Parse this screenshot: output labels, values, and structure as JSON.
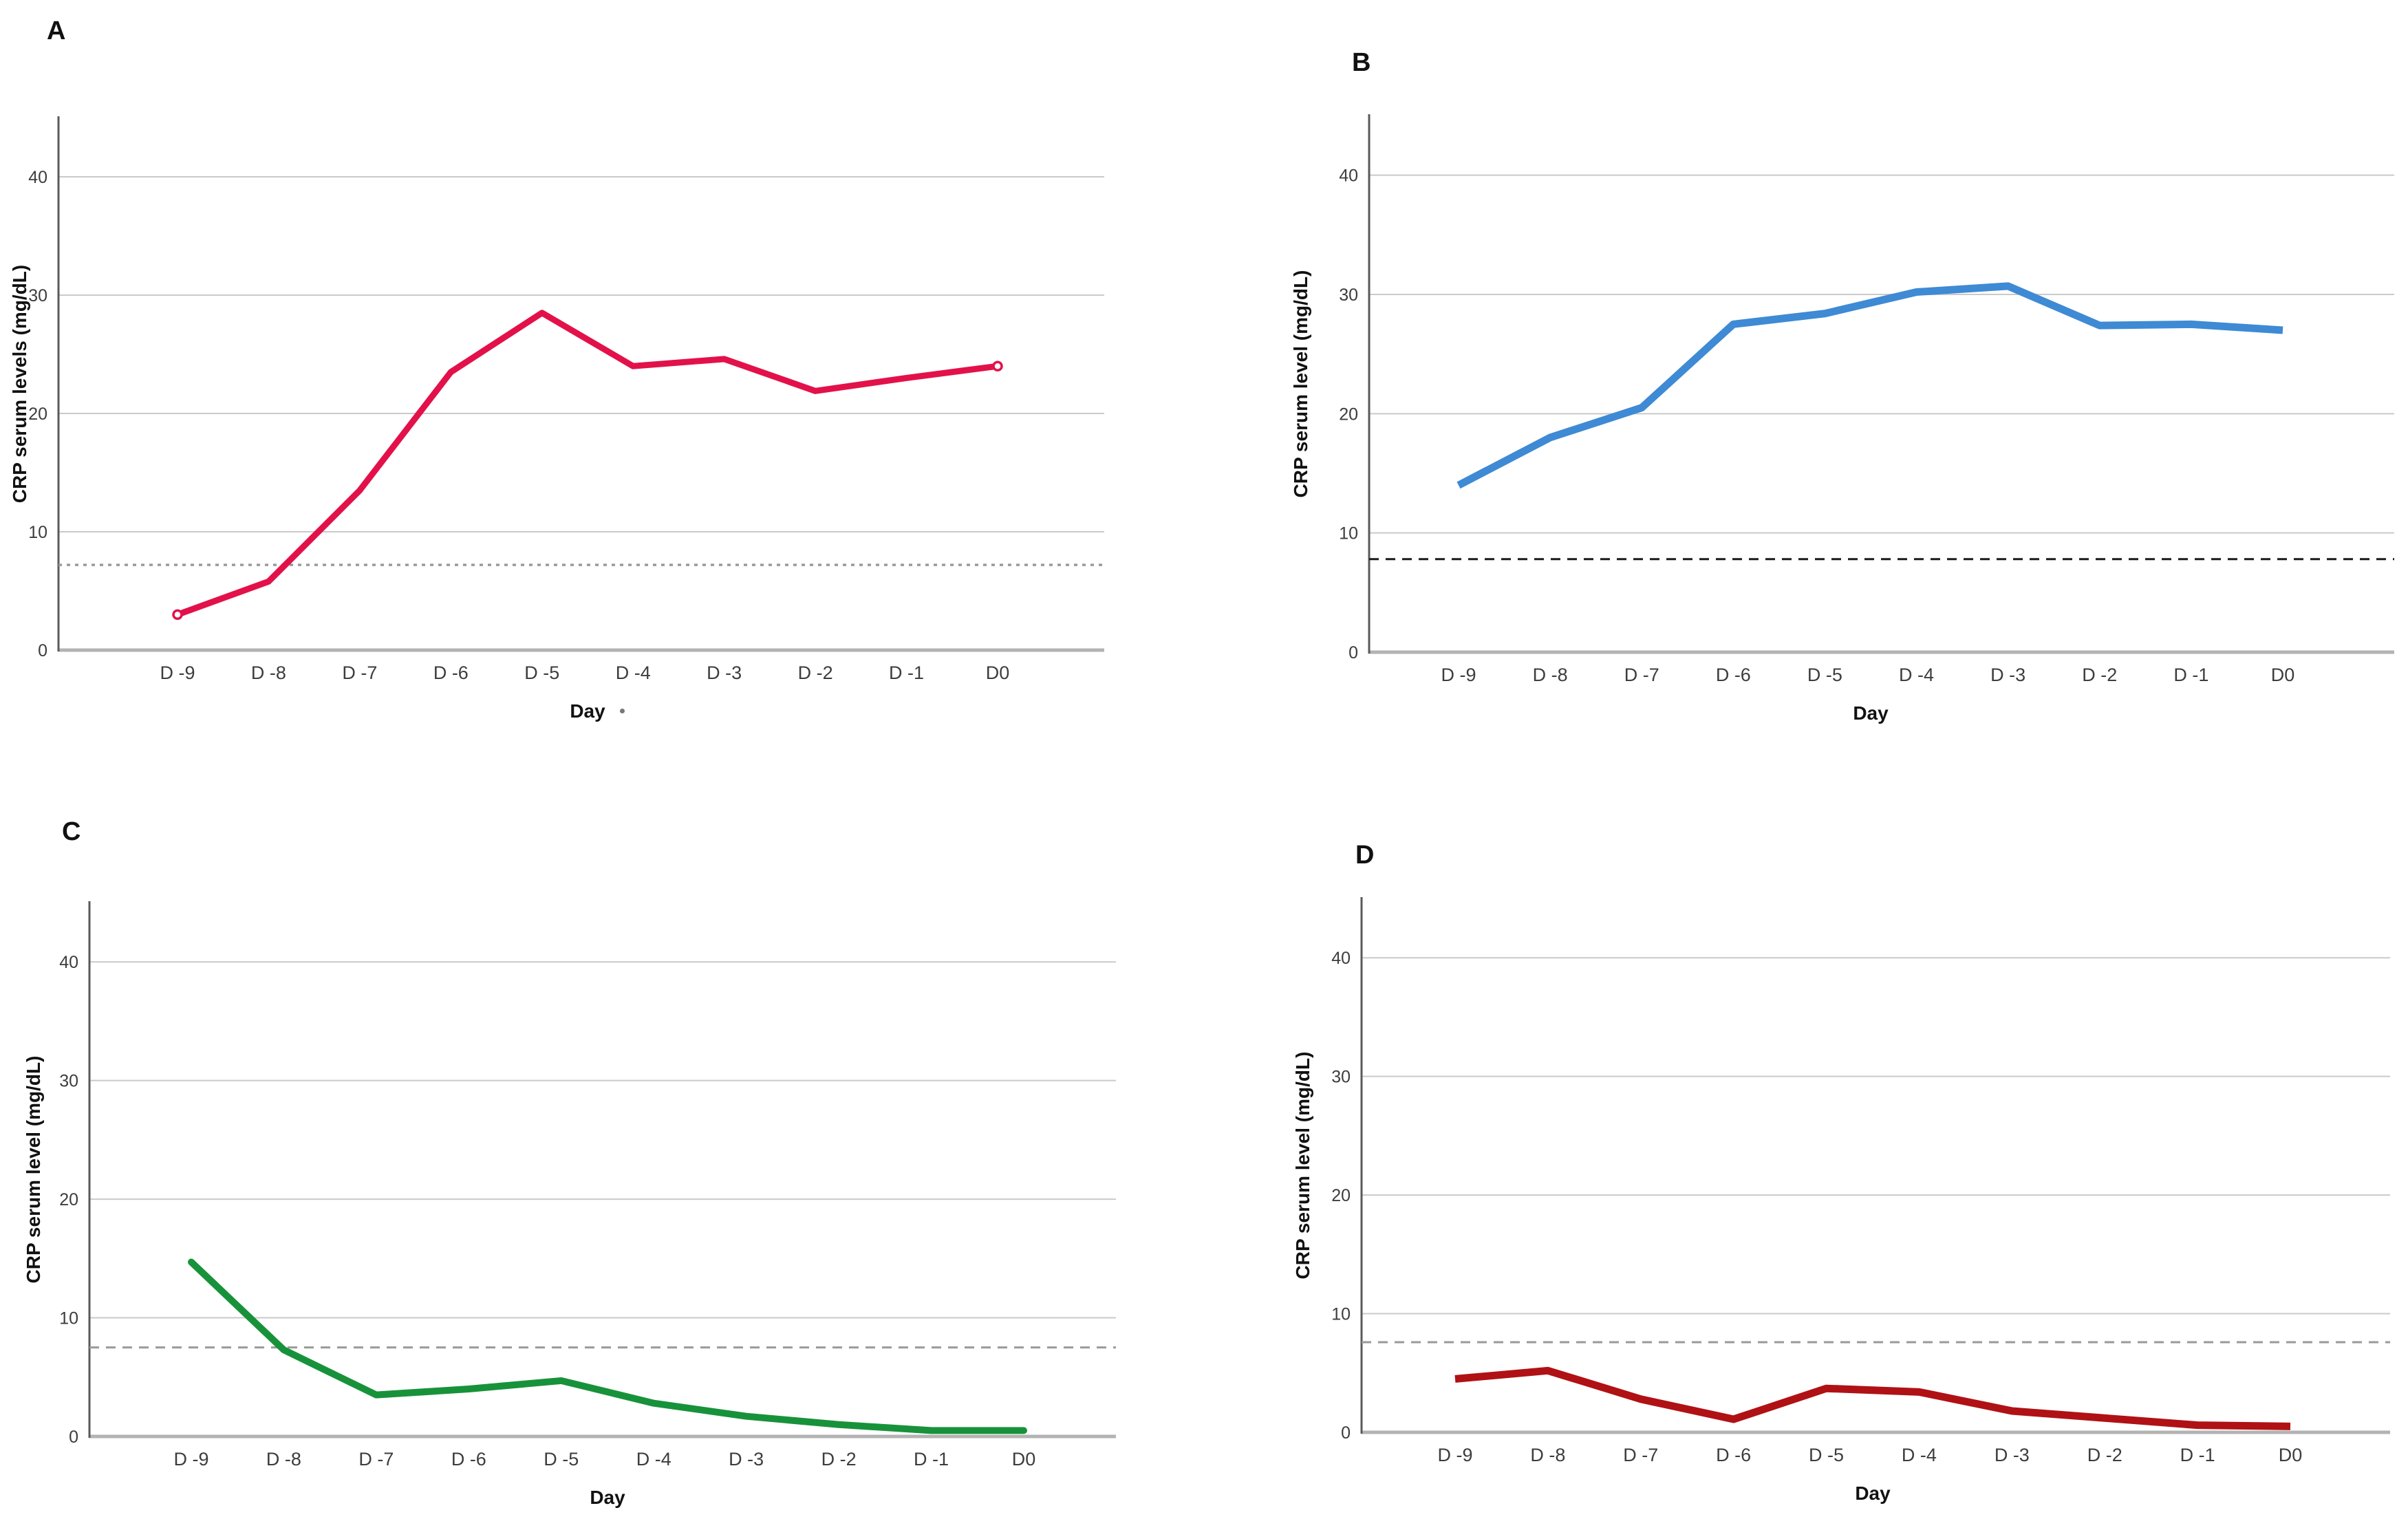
{
  "figure": {
    "artifact_dot": "."
  },
  "chart_data": [
    {
      "type": "line",
      "panel_label": "A",
      "ylabel": "CRP serum levels (mg/dL)",
      "xlabel": "Day",
      "categories": [
        "D -9",
        "D -8",
        "D -7",
        "D -6",
        "D -5",
        "D -4",
        "D -3",
        "D -2",
        "D -1",
        "D0"
      ],
      "values": [
        3,
        5.8,
        13.5,
        23.5,
        28.5,
        24,
        24.6,
        21.9,
        23,
        24
      ],
      "line_color": "#e3114a",
      "threshold_value": 7.2,
      "threshold_color": "#9a9a9a",
      "threshold_style": "dotted",
      "endpoint_markers": true,
      "yticks": [
        0,
        10,
        20,
        30,
        40
      ],
      "ylim": [
        0,
        45
      ],
      "grid": "horizontal"
    },
    {
      "type": "line",
      "panel_label": "B",
      "ylabel": "CRP serum level (mg/dL)",
      "xlabel": "Day",
      "categories": [
        "D -9",
        "D -8",
        "D -7",
        "D -6",
        "D -5",
        "D -4",
        "D -3",
        "D -2",
        "D -1",
        "D0"
      ],
      "values": [
        14,
        18,
        20.5,
        27.5,
        28.4,
        30.2,
        30.7,
        27.4,
        27.5,
        27
      ],
      "line_color": "#3e8ad4",
      "threshold_value": 7.8,
      "threshold_color": "#1a1a1a",
      "threshold_style": "dashed",
      "endpoint_markers": false,
      "yticks": [
        0,
        10,
        20,
        30,
        40
      ],
      "ylim": [
        0,
        45
      ],
      "grid": "horizontal"
    },
    {
      "type": "line",
      "panel_label": "C",
      "ylabel": "CRP serum level (mg/dL)",
      "xlabel": "Day",
      "categories": [
        "D -9",
        "D -8",
        "D -7",
        "D -6",
        "D -5",
        "D -4",
        "D -3",
        "D -2",
        "D -1",
        "D0"
      ],
      "values": [
        14.7,
        7.3,
        3.5,
        4,
        4.7,
        2.8,
        1.7,
        1,
        0.5,
        0.5
      ],
      "line_color": "#18923a",
      "threshold_value": 7.5,
      "threshold_color": "#9a9a9a",
      "threshold_style": "dashed",
      "endpoint_markers": false,
      "yticks": [
        0,
        10,
        20,
        30,
        40
      ],
      "ylim": [
        0,
        45
      ],
      "grid": "horizontal"
    },
    {
      "type": "line",
      "panel_label": "D",
      "ylabel": "CRP serum level (mg/dL)",
      "xlabel": "Day",
      "categories": [
        "D -9",
        "D -8",
        "D -7",
        "D -6",
        "D -5",
        "D -4",
        "D -3",
        "D -2",
        "D -1",
        "D0"
      ],
      "values": [
        4.5,
        5.2,
        2.8,
        1.1,
        3.7,
        3.4,
        1.8,
        1.2,
        0.6,
        0.5
      ],
      "line_color": "#b01115",
      "threshold_value": 7.6,
      "threshold_color": "#9a9a9a",
      "threshold_style": "dashed",
      "endpoint_markers": false,
      "yticks": [
        0,
        10,
        20,
        30,
        40
      ],
      "ylim": [
        0,
        45
      ],
      "grid": "horizontal"
    }
  ]
}
